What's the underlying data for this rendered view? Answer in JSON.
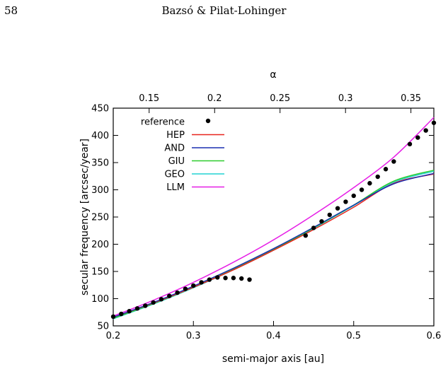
{
  "header": {
    "page_number": "58",
    "running_head": "Bazsó & Pilat-Lohinger"
  },
  "colors": {
    "reference": "#000000",
    "HEP": "#e8231e",
    "AND": "#1a2fb0",
    "GIU": "#2ecc2e",
    "GEO": "#22d2d2",
    "LLM": "#e61ee6"
  },
  "chart_data": {
    "type": "line",
    "xlabel": "semi-major axis [au]",
    "ylabel": "secular frequency [arcsec/year]",
    "x2label": "α",
    "xlim": [
      0.2,
      0.6
    ],
    "ylim": [
      50,
      450
    ],
    "xticks": [
      "0.2",
      "0.3",
      "0.4",
      "0.5",
      "0.6"
    ],
    "yticks": [
      "50",
      "100",
      "150",
      "200",
      "250",
      "300",
      "350",
      "400",
      "450"
    ],
    "x2ticks": [
      "0.15",
      "0.2",
      "0.25",
      "0.3",
      "0.35"
    ],
    "x2_tick_positions_au": [
      0.2448,
      0.3265,
      0.4081,
      0.4898,
      0.5714
    ],
    "grid": false,
    "legend_position": "top-left",
    "reference": {
      "name": "reference",
      "style": "points",
      "x": [
        0.2,
        0.21,
        0.22,
        0.23,
        0.24,
        0.25,
        0.26,
        0.27,
        0.28,
        0.29,
        0.3,
        0.31,
        0.32,
        0.33,
        0.34,
        0.35,
        0.36,
        0.37,
        0.44,
        0.45,
        0.46,
        0.47,
        0.48,
        0.49,
        0.5,
        0.51,
        0.52,
        0.53,
        0.54,
        0.55,
        0.57,
        0.58,
        0.59,
        0.6
      ],
      "y": [
        67,
        72,
        77,
        82,
        87,
        93,
        99,
        105,
        111,
        118,
        124,
        130,
        135,
        139,
        138,
        138,
        137,
        135,
        216,
        230,
        242,
        254,
        266,
        278,
        289,
        300,
        312,
        324,
        338,
        352,
        384,
        396,
        409,
        423
      ]
    },
    "series": [
      {
        "name": "HEP",
        "x": [
          0.2,
          0.25,
          0.3,
          0.35,
          0.4,
          0.45,
          0.5,
          0.55,
          0.6
        ],
        "y": [
          66,
          92,
          121,
          153,
          189,
          227,
          268,
          312,
          329
        ]
      },
      {
        "name": "AND",
        "x": [
          0.2,
          0.25,
          0.3,
          0.35,
          0.4,
          0.45,
          0.5,
          0.55,
          0.6
        ],
        "y": [
          66,
          93,
          123,
          156,
          192,
          231,
          272,
          311,
          330
        ]
      },
      {
        "name": "GIU",
        "x": [
          0.2,
          0.25,
          0.3,
          0.35,
          0.4,
          0.45,
          0.5,
          0.55,
          0.6
        ],
        "y": [
          64,
          91,
          121,
          154,
          190,
          230,
          272,
          316,
          336
        ]
      },
      {
        "name": "GEO",
        "x": [
          0.2,
          0.25,
          0.3,
          0.35,
          0.4,
          0.45,
          0.5,
          0.55,
          0.6
        ],
        "y": [
          63,
          90,
          120,
          153,
          189,
          229,
          271,
          314,
          334
        ]
      },
      {
        "name": "LLM",
        "x": [
          0.2,
          0.25,
          0.3,
          0.35,
          0.4,
          0.45,
          0.5,
          0.55,
          0.6
        ],
        "y": [
          68,
          97,
          130,
          167,
          208,
          254,
          304,
          360,
          433
        ]
      }
    ]
  }
}
